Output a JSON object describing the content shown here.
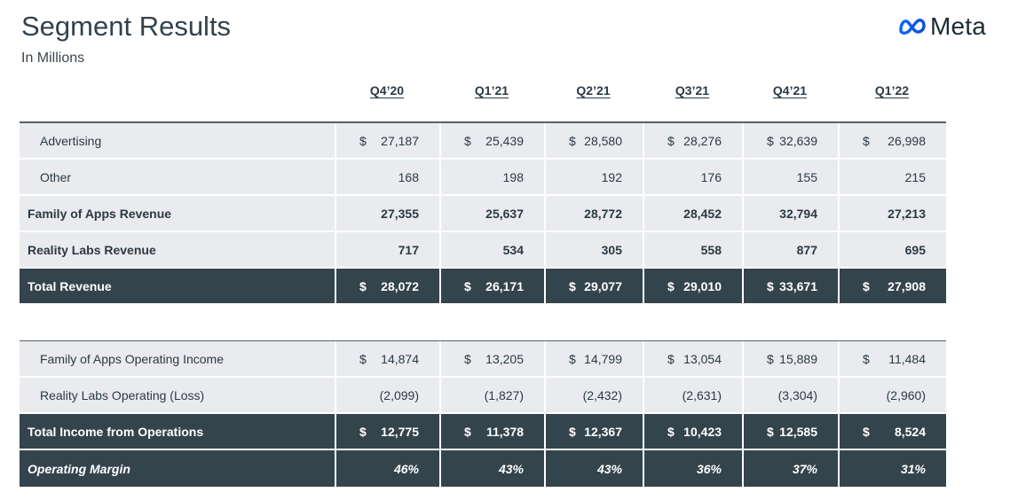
{
  "title": "Segment Results",
  "subtitle": "In Millions",
  "logo_text": "Meta",
  "columns": [
    "Q4’20",
    "Q1’21",
    "Q2’21",
    "Q3’21",
    "Q4’21",
    "Q1’22"
  ],
  "rows": {
    "advertising": {
      "label": "Advertising",
      "cur": [
        "$",
        "$",
        "$",
        "$",
        "$",
        "$"
      ],
      "values": [
        "27,187",
        "25,439",
        "28,580",
        "28,276",
        "32,639",
        "26,998"
      ]
    },
    "other": {
      "label": "Other",
      "values": [
        "168",
        "198",
        "192",
        "176",
        "155",
        "215"
      ]
    },
    "foa_revenue": {
      "label": "Family of Apps Revenue",
      "values": [
        "27,355",
        "25,637",
        "28,772",
        "28,452",
        "32,794",
        "27,213"
      ]
    },
    "rl_revenue": {
      "label": "Reality Labs Revenue",
      "values": [
        "717",
        "534",
        "305",
        "558",
        "877",
        "695"
      ]
    },
    "total_revenue": {
      "label": "Total Revenue",
      "cur": [
        "$",
        "$",
        "$",
        "$",
        "$",
        "$"
      ],
      "values": [
        "28,072",
        "26,171",
        "29,077",
        "29,010",
        "33,671",
        "27,908"
      ]
    },
    "foa_income": {
      "label": "Family of Apps Operating Income",
      "cur": [
        "$",
        "$",
        "$",
        "$",
        "$",
        "$"
      ],
      "values": [
        "14,874",
        "13,205",
        "14,799",
        "13,054",
        "15,889",
        "11,484"
      ]
    },
    "rl_loss": {
      "label": "Reality Labs Operating (Loss)",
      "values": [
        "(2,099)",
        "(1,827)",
        "(2,432)",
        "(2,631)",
        "(3,304)",
        "(2,960)"
      ]
    },
    "total_income": {
      "label": "Total Income from Operations",
      "cur": [
        "$",
        "$",
        "$",
        "$",
        "$",
        "$"
      ],
      "values": [
        "12,775",
        "11,378",
        "12,367",
        "10,423",
        "12,585",
        "8,524"
      ]
    },
    "op_margin": {
      "label": "Operating Margin",
      "values": [
        "46%",
        "43%",
        "43%",
        "36%",
        "37%",
        "31%"
      ]
    }
  },
  "colors": {
    "dark_row": "#34444d",
    "light_row": "#e9ebee",
    "logo_blue": "#0668e1"
  },
  "icons": {
    "logo": "meta-infinity-icon"
  }
}
